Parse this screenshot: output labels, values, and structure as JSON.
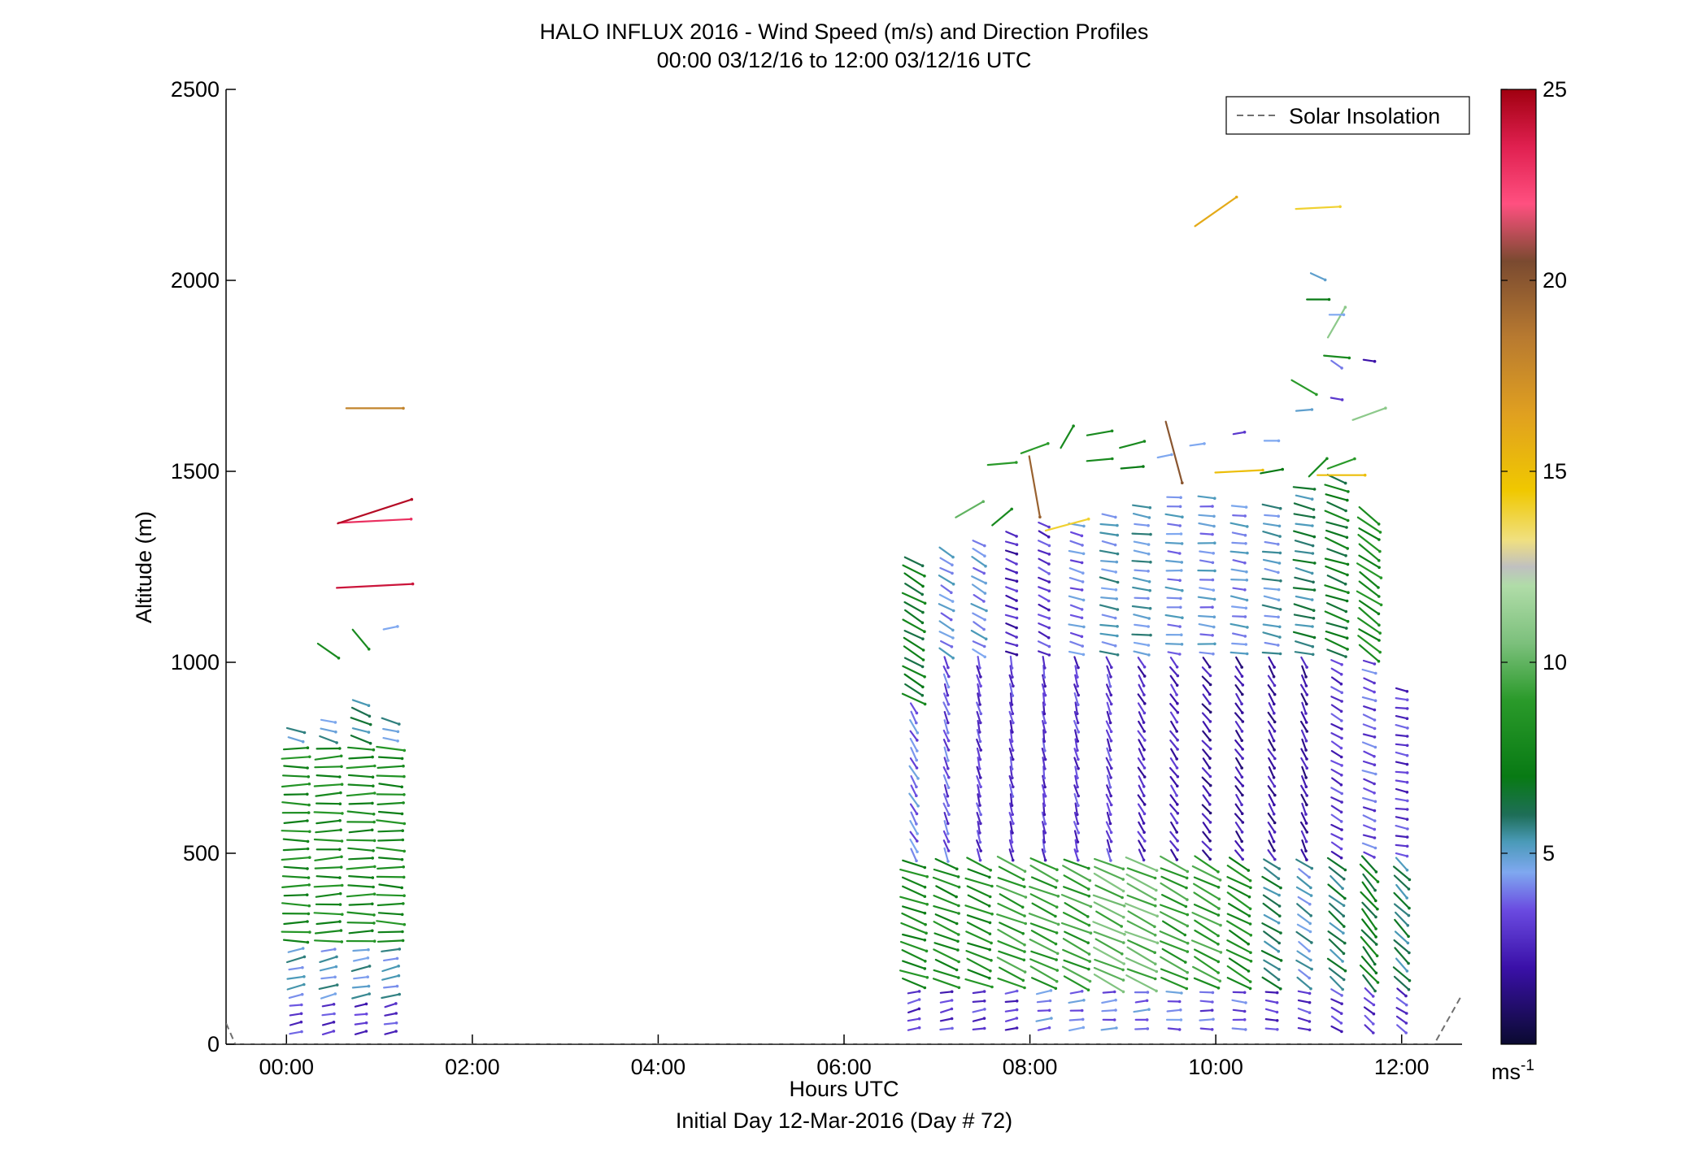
{
  "chart_data": {
    "type": "wind barb profile (quiver)",
    "title": "HALO INFLUX 2016 - Wind Speed (m/s) and Direction Profiles",
    "subtitle": "00:00 03/12/16 to 12:00 03/12/16  UTC",
    "xlabel": "Hours UTC",
    "xlabel2": "Initial Day 12-Mar-2016 (Day # 72)",
    "ylabel": "Altitude (m)",
    "colorbar_unit": "ms",
    "colorbar_unit_exp": "-1",
    "xlim_hours": [
      -0.65,
      12.65
    ],
    "ylim": [
      0,
      2500
    ],
    "x_ticks": [
      {
        "value": 0,
        "label": "00:00"
      },
      {
        "value": 2,
        "label": "02:00"
      },
      {
        "value": 4,
        "label": "04:00"
      },
      {
        "value": 6,
        "label": "06:00"
      },
      {
        "value": 8,
        "label": "08:00"
      },
      {
        "value": 10,
        "label": "10:00"
      },
      {
        "value": 12,
        "label": "12:00"
      }
    ],
    "y_ticks": [
      {
        "value": 0,
        "label": "0"
      },
      {
        "value": 500,
        "label": "500"
      },
      {
        "value": 1000,
        "label": "1000"
      },
      {
        "value": 1500,
        "label": "1500"
      },
      {
        "value": 2000,
        "label": "2000"
      },
      {
        "value": 2500,
        "label": "2500"
      }
    ],
    "colorbar_range": [
      0,
      25
    ],
    "colorbar_ticks": [
      {
        "value": 5,
        "label": "5"
      },
      {
        "value": 10,
        "label": "10"
      },
      {
        "value": 15,
        "label": "15"
      },
      {
        "value": 20,
        "label": "20"
      },
      {
        "value": 25,
        "label": "25"
      }
    ],
    "colormap_stops": [
      {
        "v": 0,
        "c": "#0a0a30"
      },
      {
        "v": 2,
        "c": "#3a10a8"
      },
      {
        "v": 3.5,
        "c": "#6a4ae0"
      },
      {
        "v": 4.5,
        "c": "#7fa8f0"
      },
      {
        "v": 5.3,
        "c": "#4a9ab8"
      },
      {
        "v": 6,
        "c": "#1e6e58"
      },
      {
        "v": 7,
        "c": "#087a14"
      },
      {
        "v": 9,
        "c": "#2a9a2a"
      },
      {
        "v": 10.5,
        "c": "#7cc07c"
      },
      {
        "v": 12,
        "c": "#b0dca8"
      },
      {
        "v": 12.5,
        "c": "#c0c0c0"
      },
      {
        "v": 13.2,
        "c": "#f0e080"
      },
      {
        "v": 14.5,
        "c": "#f0c800"
      },
      {
        "v": 16.5,
        "c": "#e0a020"
      },
      {
        "v": 18.5,
        "c": "#b87a30"
      },
      {
        "v": 20.5,
        "c": "#7a4a30"
      },
      {
        "v": 22,
        "c": "#ff5080"
      },
      {
        "v": 23.5,
        "c": "#e02050"
      },
      {
        "v": 25,
        "c": "#a00010"
      }
    ],
    "legend": {
      "label": "Solar Insolation",
      "placement": "top-right",
      "style": "dashed gray"
    },
    "solar_insolation_curve": {
      "hours": [
        -0.65,
        -0.55,
        12.35,
        12.65
      ],
      "altitude_m": [
        55,
        0,
        0,
        130
      ]
    },
    "wind_profiles": [
      {
        "hour": 0.1,
        "lowest_alt": 30,
        "top_alt": 830,
        "segments": [
          {
            "to": 120,
            "speed": 3,
            "dir_deg": 10
          },
          {
            "to": 250,
            "speed": 5,
            "dir_deg": 12
          },
          {
            "to": 780,
            "speed": 8,
            "dir_deg": 0
          },
          {
            "to": 830,
            "speed": 5,
            "dir_deg": -12
          }
        ]
      },
      {
        "hour": 0.45,
        "lowest_alt": 30,
        "top_alt": 860,
        "segments": [
          {
            "to": 120,
            "speed": 3,
            "dir_deg": 12
          },
          {
            "to": 250,
            "speed": 5,
            "dir_deg": 12
          },
          {
            "to": 780,
            "speed": 8,
            "dir_deg": 2
          },
          {
            "to": 860,
            "speed": 5,
            "dir_deg": -15
          }
        ]
      },
      {
        "hour": 0.8,
        "lowest_alt": 30,
        "top_alt": 900,
        "segments": [
          {
            "to": 120,
            "speed": 3,
            "dir_deg": 10
          },
          {
            "to": 250,
            "speed": 5,
            "dir_deg": 10
          },
          {
            "to": 780,
            "speed": 8,
            "dir_deg": 0
          },
          {
            "to": 900,
            "speed": 6,
            "dir_deg": -20
          }
        ]
      },
      {
        "hour": 1.12,
        "lowest_alt": 30,
        "top_alt": 860,
        "segments": [
          {
            "to": 120,
            "speed": 3,
            "dir_deg": 12
          },
          {
            "to": 250,
            "speed": 5,
            "dir_deg": 12
          },
          {
            "to": 780,
            "speed": 8,
            "dir_deg": -2
          },
          {
            "to": 860,
            "speed": 5,
            "dir_deg": -15
          }
        ]
      },
      {
        "hour": 6.75,
        "lowest_alt": 40,
        "top_alt": 1280,
        "segments": [
          {
            "to": 140,
            "speed": 3,
            "dir_deg": 15
          },
          {
            "to": 480,
            "speed": 8,
            "dir_deg": -20
          },
          {
            "to": 900,
            "speed": 4,
            "dir_deg": -60
          },
          {
            "to": 1280,
            "speed": 7,
            "dir_deg": -30
          }
        ]
      },
      {
        "hour": 7.1,
        "lowest_alt": 40,
        "top_alt": 1300,
        "segments": [
          {
            "to": 140,
            "speed": 3,
            "dir_deg": 12
          },
          {
            "to": 480,
            "speed": 8,
            "dir_deg": -22
          },
          {
            "to": 1000,
            "speed": 3.5,
            "dir_deg": -70
          },
          {
            "to": 1300,
            "speed": 4.5,
            "dir_deg": -30
          }
        ]
      },
      {
        "hour": 7.45,
        "lowest_alt": 40,
        "top_alt": 1330,
        "segments": [
          {
            "to": 140,
            "speed": 3,
            "dir_deg": 10
          },
          {
            "to": 480,
            "speed": 8,
            "dir_deg": -22
          },
          {
            "to": 1000,
            "speed": 3,
            "dir_deg": -75
          },
          {
            "to": 1330,
            "speed": 4.5,
            "dir_deg": -30
          }
        ]
      },
      {
        "hour": 7.8,
        "lowest_alt": 40,
        "top_alt": 1340,
        "segments": [
          {
            "to": 140,
            "speed": 3,
            "dir_deg": 10
          },
          {
            "to": 480,
            "speed": 9,
            "dir_deg": -24
          },
          {
            "to": 1000,
            "speed": 3,
            "dir_deg": -78
          },
          {
            "to": 1340,
            "speed": 2.5,
            "dir_deg": -20
          }
        ]
      },
      {
        "hour": 8.15,
        "lowest_alt": 40,
        "top_alt": 1360,
        "segments": [
          {
            "to": 140,
            "speed": 4,
            "dir_deg": 8
          },
          {
            "to": 480,
            "speed": 9,
            "dir_deg": -24
          },
          {
            "to": 1000,
            "speed": 3,
            "dir_deg": -80
          },
          {
            "to": 1360,
            "speed": 3,
            "dir_deg": -25
          }
        ]
      },
      {
        "hour": 8.5,
        "lowest_alt": 40,
        "top_alt": 1380,
        "segments": [
          {
            "to": 140,
            "speed": 4,
            "dir_deg": 6
          },
          {
            "to": 480,
            "speed": 9,
            "dir_deg": -25
          },
          {
            "to": 1000,
            "speed": 3,
            "dir_deg": -75
          },
          {
            "to": 1380,
            "speed": 4,
            "dir_deg": -15
          }
        ]
      },
      {
        "hour": 8.85,
        "lowest_alt": 40,
        "top_alt": 1400,
        "segments": [
          {
            "to": 140,
            "speed": 4,
            "dir_deg": 5
          },
          {
            "to": 480,
            "speed": 10,
            "dir_deg": -25
          },
          {
            "to": 1000,
            "speed": 3,
            "dir_deg": -70
          },
          {
            "to": 1400,
            "speed": 5,
            "dir_deg": -10
          }
        ]
      },
      {
        "hour": 9.2,
        "lowest_alt": 40,
        "top_alt": 1420,
        "segments": [
          {
            "to": 140,
            "speed": 4,
            "dir_deg": 5
          },
          {
            "to": 480,
            "speed": 10,
            "dir_deg": -25
          },
          {
            "to": 1000,
            "speed": 2.5,
            "dir_deg": -60
          },
          {
            "to": 1420,
            "speed": 5,
            "dir_deg": -8
          }
        ]
      },
      {
        "hour": 9.55,
        "lowest_alt": 40,
        "top_alt": 1440,
        "segments": [
          {
            "to": 140,
            "speed": 4,
            "dir_deg": 0
          },
          {
            "to": 480,
            "speed": 9,
            "dir_deg": -26
          },
          {
            "to": 1000,
            "speed": 2.5,
            "dir_deg": -55
          },
          {
            "to": 1440,
            "speed": 4.5,
            "dir_deg": -5
          }
        ]
      },
      {
        "hour": 9.9,
        "lowest_alt": 40,
        "top_alt": 1440,
        "segments": [
          {
            "to": 140,
            "speed": 3.5,
            "dir_deg": 0
          },
          {
            "to": 480,
            "speed": 9,
            "dir_deg": -28
          },
          {
            "to": 1000,
            "speed": 2,
            "dir_deg": -50
          },
          {
            "to": 1440,
            "speed": 4.5,
            "dir_deg": -5
          }
        ]
      },
      {
        "hour": 10.25,
        "lowest_alt": 40,
        "top_alt": 1430,
        "segments": [
          {
            "to": 140,
            "speed": 3.5,
            "dir_deg": -5
          },
          {
            "to": 480,
            "speed": 8,
            "dir_deg": -30
          },
          {
            "to": 1000,
            "speed": 2,
            "dir_deg": -55
          },
          {
            "to": 1430,
            "speed": 4.5,
            "dir_deg": -8
          }
        ]
      },
      {
        "hour": 10.6,
        "lowest_alt": 40,
        "top_alt": 1420,
        "segments": [
          {
            "to": 140,
            "speed": 3,
            "dir_deg": -10
          },
          {
            "to": 480,
            "speed": 6,
            "dir_deg": -32
          },
          {
            "to": 1000,
            "speed": 2,
            "dir_deg": -60
          },
          {
            "to": 1420,
            "speed": 5,
            "dir_deg": -10
          }
        ]
      },
      {
        "hour": 10.95,
        "lowest_alt": 40,
        "top_alt": 1460,
        "segments": [
          {
            "to": 140,
            "speed": 3,
            "dir_deg": -15
          },
          {
            "to": 480,
            "speed": 5,
            "dir_deg": -35
          },
          {
            "to": 1000,
            "speed": 2,
            "dir_deg": -65
          },
          {
            "to": 1460,
            "speed": 6,
            "dir_deg": -12
          }
        ]
      },
      {
        "hour": 11.3,
        "lowest_alt": 40,
        "top_alt": 1480,
        "segments": [
          {
            "to": 140,
            "speed": 3,
            "dir_deg": -30
          },
          {
            "to": 480,
            "speed": 6,
            "dir_deg": -40
          },
          {
            "to": 1000,
            "speed": 3,
            "dir_deg": -30
          },
          {
            "to": 1480,
            "speed": 7,
            "dir_deg": -20
          }
        ]
      },
      {
        "hour": 11.65,
        "lowest_alt": 40,
        "top_alt": 1400,
        "segments": [
          {
            "to": 140,
            "speed": 3,
            "dir_deg": -40
          },
          {
            "to": 480,
            "speed": 7,
            "dir_deg": -50
          },
          {
            "to": 1000,
            "speed": 3.5,
            "dir_deg": -20
          },
          {
            "to": 1400,
            "speed": 8,
            "dir_deg": -35
          }
        ]
      },
      {
        "hour": 12.0,
        "lowest_alt": 40,
        "top_alt": 950,
        "segments": [
          {
            "to": 140,
            "speed": 3,
            "dir_deg": -35
          },
          {
            "to": 480,
            "speed": 6,
            "dir_deg": -45
          },
          {
            "to": 950,
            "speed": 3,
            "dir_deg": -10
          }
        ]
      }
    ],
    "upper_vectors": [
      {
        "hour": 0.45,
        "alt": 1030,
        "speed": 8,
        "dir_deg": -35
      },
      {
        "hour": 0.8,
        "alt": 1060,
        "speed": 8,
        "dir_deg": -50
      },
      {
        "hour": 1.12,
        "alt": 1090,
        "speed": 4.5,
        "dir_deg": 12
      },
      {
        "hour": 0.95,
        "alt": 1200,
        "speed": 24,
        "dir_deg": 3
      },
      {
        "hour": 0.95,
        "alt": 1370,
        "speed": 23,
        "dir_deg": 3
      },
      {
        "hour": 0.95,
        "alt": 1395,
        "speed": 24.5,
        "dir_deg": 18
      },
      {
        "hour": 0.95,
        "alt": 1665,
        "speed": 18,
        "dir_deg": 0
      },
      {
        "hour": 7.35,
        "alt": 1400,
        "speed": 10,
        "dir_deg": 30
      },
      {
        "hour": 7.7,
        "alt": 1380,
        "speed": 8,
        "dir_deg": 40
      },
      {
        "hour": 7.7,
        "alt": 1520,
        "speed": 9,
        "dir_deg": 5
      },
      {
        "hour": 8.05,
        "alt": 1560,
        "speed": 9,
        "dir_deg": 20
      },
      {
        "hour": 8.05,
        "alt": 1460,
        "speed": 19.5,
        "dir_deg": -80
      },
      {
        "hour": 8.4,
        "alt": 1590,
        "speed": 8,
        "dir_deg": 60
      },
      {
        "hour": 8.4,
        "alt": 1360,
        "speed": 14,
        "dir_deg": 15
      },
      {
        "hour": 8.75,
        "alt": 1600,
        "speed": 8,
        "dir_deg": 10
      },
      {
        "hour": 8.75,
        "alt": 1530,
        "speed": 8,
        "dir_deg": 5
      },
      {
        "hour": 9.1,
        "alt": 1570,
        "speed": 8,
        "dir_deg": 15
      },
      {
        "hour": 9.1,
        "alt": 1510,
        "speed": 7,
        "dir_deg": 5
      },
      {
        "hour": 9.45,
        "alt": 1540,
        "speed": 4.5,
        "dir_deg": 12
      },
      {
        "hour": 9.8,
        "alt": 1570,
        "speed": 4.5,
        "dir_deg": 8
      },
      {
        "hour": 9.55,
        "alt": 1550,
        "speed": 20,
        "dir_deg": -75
      },
      {
        "hour": 10.25,
        "alt": 1600,
        "speed": 3,
        "dir_deg": 10
      },
      {
        "hour": 10.25,
        "alt": 1500,
        "speed": 15,
        "dir_deg": 3
      },
      {
        "hour": 10.6,
        "alt": 1580,
        "speed": 4.5,
        "dir_deg": 0
      },
      {
        "hour": 10.6,
        "alt": 1500,
        "speed": 7,
        "dir_deg": 10
      },
      {
        "hour": 10.95,
        "alt": 1720,
        "speed": 9,
        "dir_deg": -30
      },
      {
        "hour": 10.95,
        "alt": 1660,
        "speed": 5,
        "dir_deg": 5
      },
      {
        "hour": 11.1,
        "alt": 1510,
        "speed": 8,
        "dir_deg": 45
      },
      {
        "hour": 11.35,
        "alt": 1490,
        "speed": 15,
        "dir_deg": 0
      },
      {
        "hour": 11.35,
        "alt": 1520,
        "speed": 9,
        "dir_deg": 20
      },
      {
        "hour": 11.3,
        "alt": 1780,
        "speed": 4,
        "dir_deg": -35
      },
      {
        "hour": 11.3,
        "alt": 1690,
        "speed": 3,
        "dir_deg": -10
      },
      {
        "hour": 11.3,
        "alt": 1800,
        "speed": 8,
        "dir_deg": -5
      },
      {
        "hour": 11.65,
        "alt": 1790,
        "speed": 2,
        "dir_deg": -8
      },
      {
        "hour": 11.65,
        "alt": 1650,
        "speed": 11,
        "dir_deg": 20
      },
      {
        "hour": 11.3,
        "alt": 1890,
        "speed": 11,
        "dir_deg": 60
      },
      {
        "hour": 11.3,
        "alt": 1910,
        "speed": 4.5,
        "dir_deg": 0
      },
      {
        "hour": 11.1,
        "alt": 1950,
        "speed": 7,
        "dir_deg": 0
      },
      {
        "hour": 11.1,
        "alt": 2010,
        "speed": 5,
        "dir_deg": -25
      },
      {
        "hour": 11.1,
        "alt": 2190,
        "speed": 14,
        "dir_deg": 3
      },
      {
        "hour": 10.0,
        "alt": 2180,
        "speed": 16,
        "dir_deg": 35
      }
    ]
  }
}
